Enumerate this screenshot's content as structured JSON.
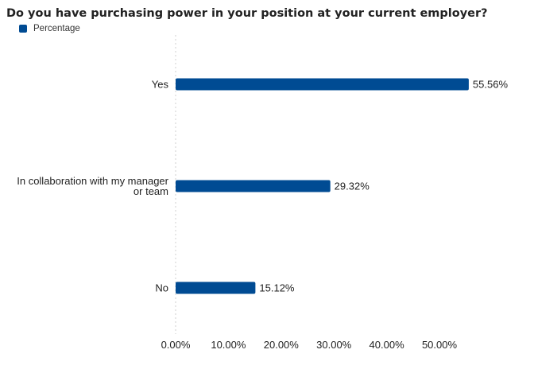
{
  "chart_data": {
    "type": "bar",
    "orientation": "horizontal",
    "title": "Do you have purchasing power in your position at your current employer?",
    "categories": [
      "Yes",
      "In collaboration with my manager or team",
      "No"
    ],
    "category_lines": [
      [
        "Yes"
      ],
      [
        "In collaboration with my manager",
        "or team"
      ],
      [
        "No"
      ]
    ],
    "series": [
      {
        "name": "Percentage",
        "color": "#004b93",
        "values": [
          55.56,
          29.32,
          15.12
        ],
        "labels": [
          "55.56%",
          "29.32%",
          "15.12%"
        ]
      }
    ],
    "x_ticks": [
      0,
      10,
      20,
      30,
      40,
      50
    ],
    "x_tick_labels": [
      "0.00%",
      "10.00%",
      "20.00%",
      "30.00%",
      "40.00%",
      "50.00%"
    ],
    "xlim": [
      0,
      56
    ],
    "xlabel": "",
    "ylabel": "",
    "grid": "baseline only (dotted)",
    "legend_position": "top-left"
  }
}
